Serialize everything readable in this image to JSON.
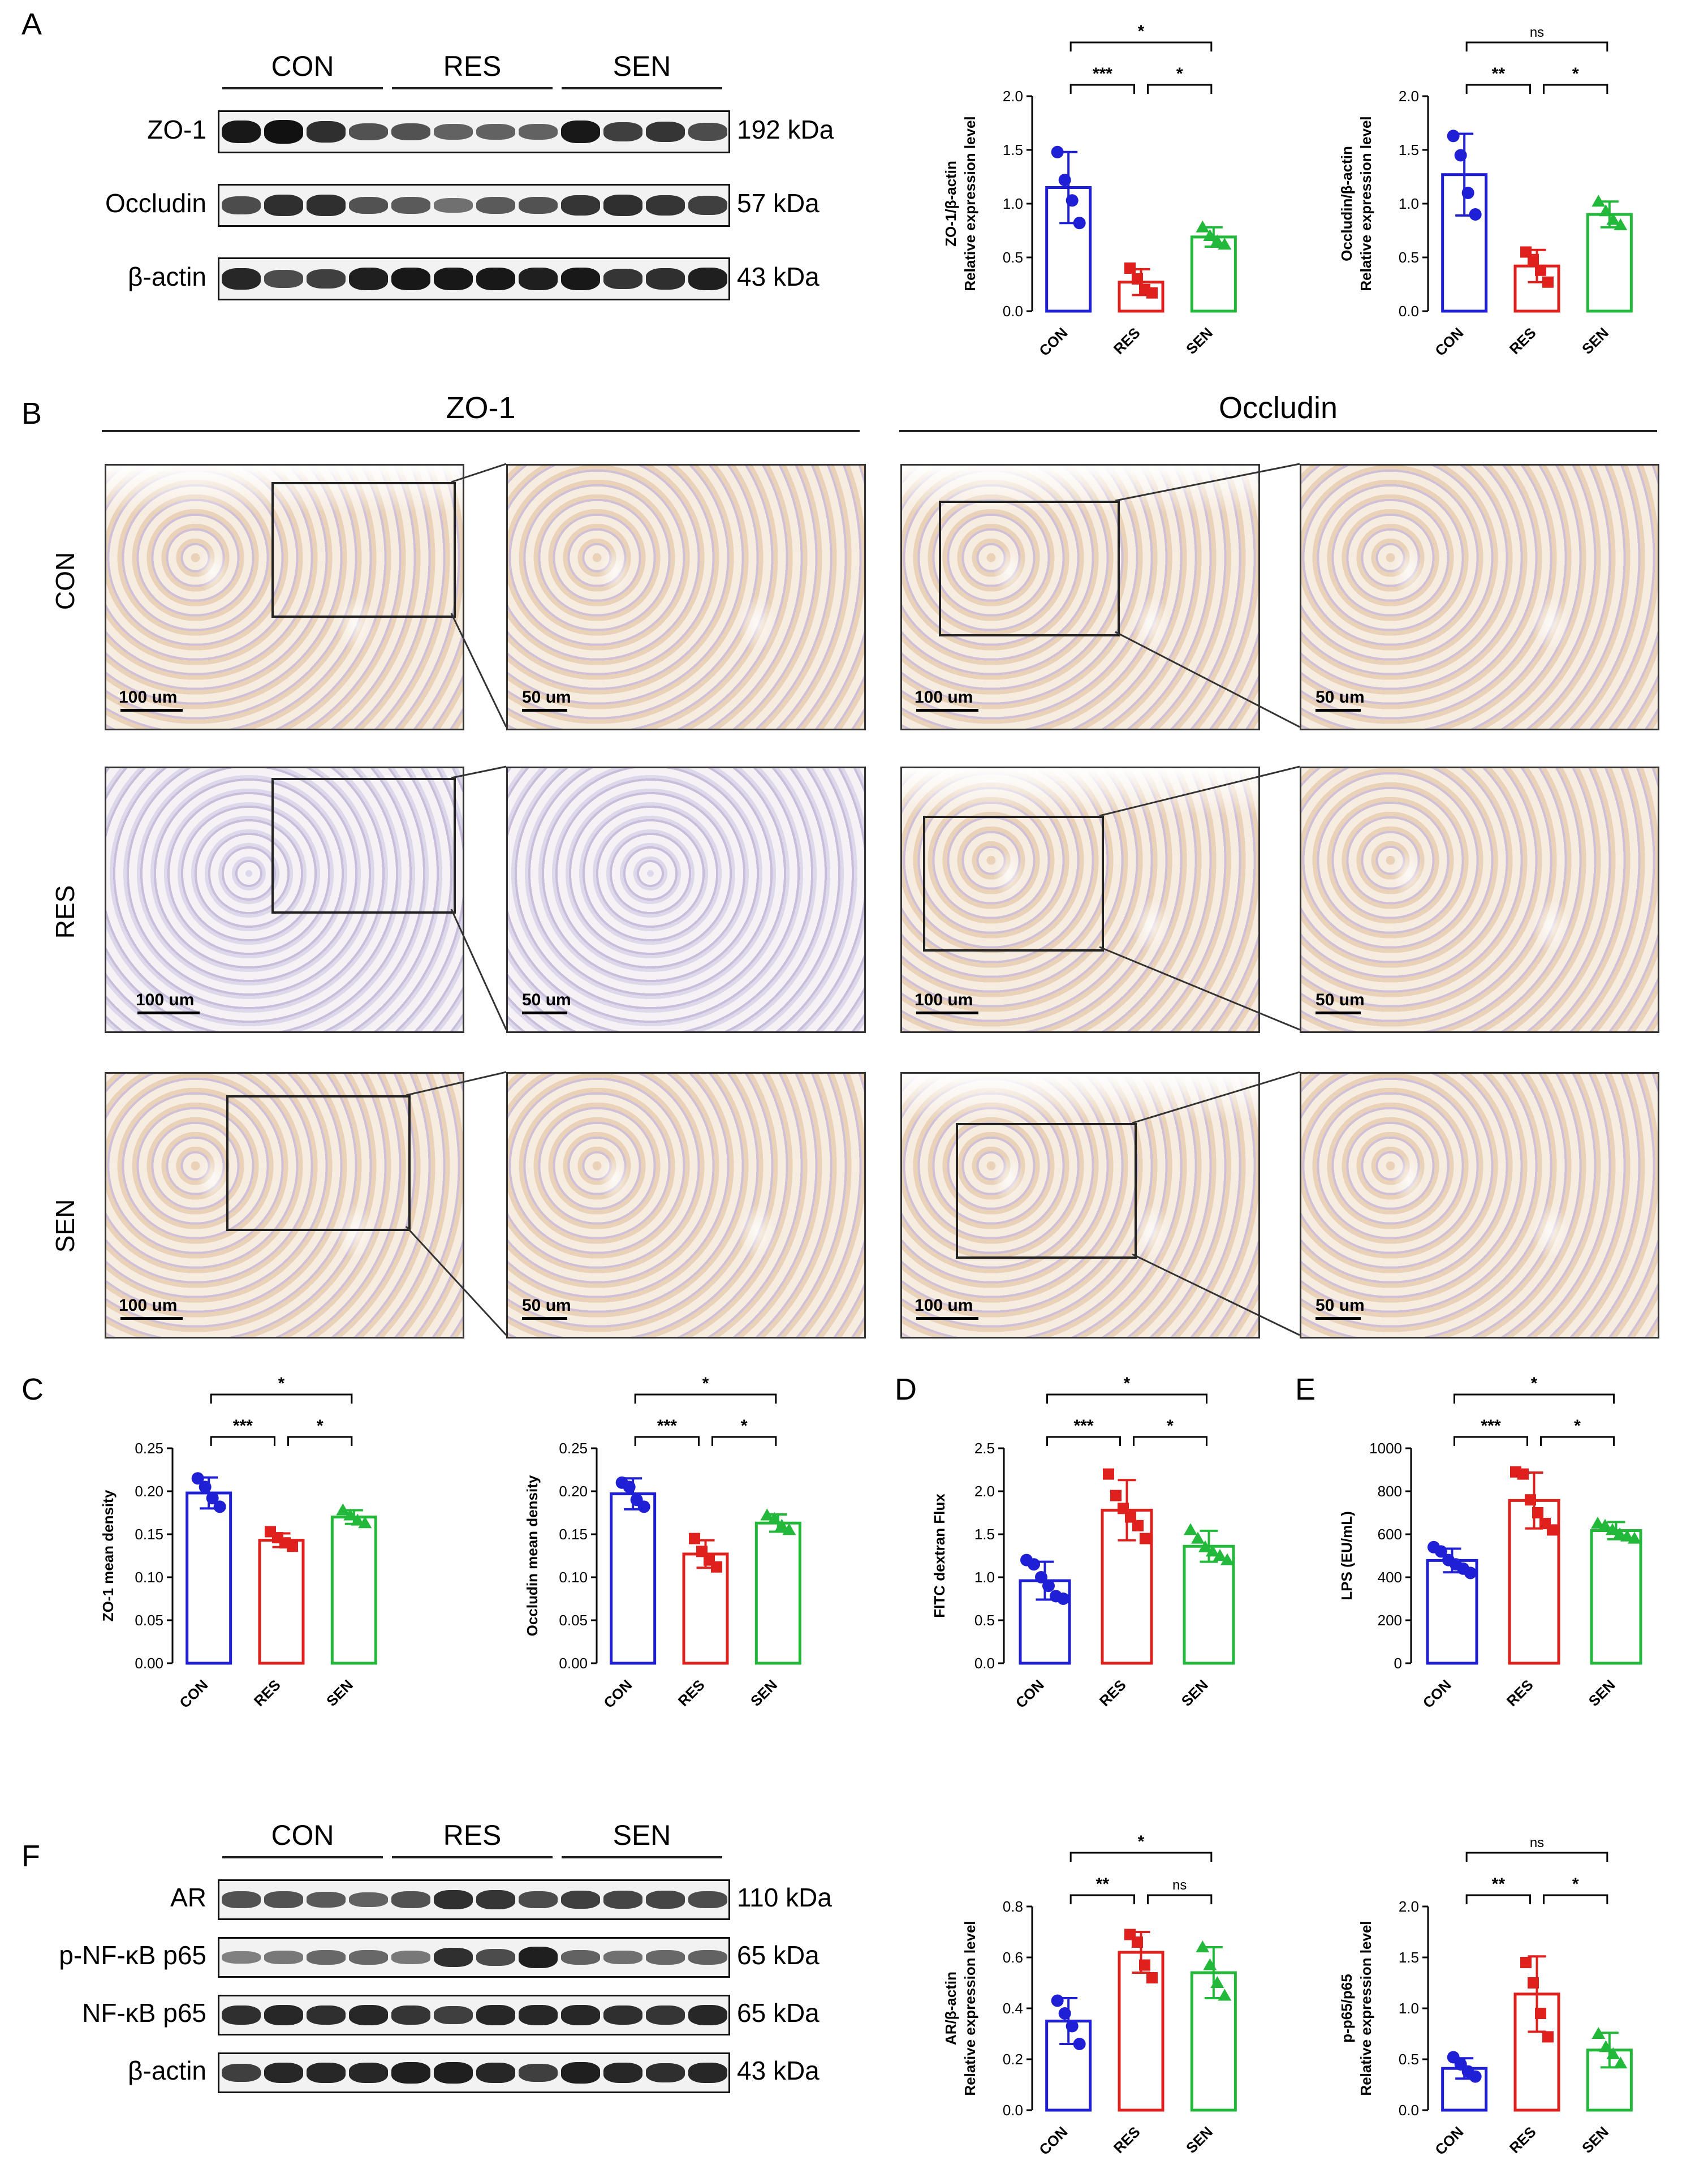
{
  "panels": {
    "A": "A",
    "B": "B",
    "C": "C",
    "D": "D",
    "E": "E",
    "F": "F"
  },
  "western_A": {
    "groups": [
      "CON",
      "RES",
      "SEN"
    ],
    "rows": [
      {
        "label": "ZO-1",
        "kda": "192 kDa",
        "intensity": [
          0.95,
          1.0,
          0.8,
          0.55,
          0.55,
          0.45,
          0.45,
          0.45,
          0.95,
          0.7,
          0.75,
          0.6
        ]
      },
      {
        "label": "Occludin",
        "kda": "57 kDa",
        "intensity": [
          0.6,
          0.8,
          0.8,
          0.55,
          0.5,
          0.35,
          0.5,
          0.55,
          0.75,
          0.8,
          0.75,
          0.7
        ]
      },
      {
        "label": "β-actin",
        "kda": "43 kDa",
        "intensity": [
          0.85,
          0.6,
          0.7,
          0.9,
          0.95,
          0.95,
          0.95,
          0.9,
          0.95,
          0.75,
          0.8,
          0.9
        ]
      }
    ]
  },
  "western_F": {
    "groups": [
      "CON",
      "RES",
      "SEN"
    ],
    "rows": [
      {
        "label": "AR",
        "kda": "110 kDa",
        "intensity": [
          0.55,
          0.55,
          0.5,
          0.45,
          0.55,
          0.8,
          0.75,
          0.6,
          0.7,
          0.65,
          0.65,
          0.6
        ]
      },
      {
        "label": "p-NF-κB p65",
        "kda": "65 kDa",
        "intensity": [
          0.25,
          0.3,
          0.4,
          0.4,
          0.3,
          0.8,
          0.6,
          0.9,
          0.45,
          0.35,
          0.4,
          0.45
        ]
      },
      {
        "label": "NF-κB p65",
        "kda": "65 kDa",
        "intensity": [
          0.8,
          0.85,
          0.8,
          0.85,
          0.75,
          0.7,
          0.85,
          0.85,
          0.85,
          0.8,
          0.75,
          0.85
        ]
      },
      {
        "label": "β-actin",
        "kda": "43 kDa",
        "intensity": [
          0.7,
          0.85,
          0.85,
          0.85,
          0.9,
          0.9,
          0.85,
          0.7,
          0.9,
          0.85,
          0.8,
          0.85
        ]
      }
    ]
  },
  "ihc": {
    "col_titles": [
      "ZO-1",
      "Occludin"
    ],
    "row_labels": [
      "CON",
      "RES",
      "SEN"
    ],
    "scale_low": "100 um",
    "scale_high": "50 um"
  },
  "colors": {
    "CON": "#1f1fd6",
    "RES": "#e0201c",
    "SEN": "#22b83a"
  },
  "chart_data": [
    {
      "id": "zo1_wb",
      "type": "bar",
      "categories": [
        "CON",
        "RES",
        "SEN"
      ],
      "ylabel": [
        "ZO-1/β-actin",
        "Relative expression level"
      ],
      "ylim": [
        0,
        2.0
      ],
      "yticks": [
        "0.0",
        "0.5",
        "1.0",
        "1.5",
        "2.0"
      ],
      "values": [
        1.15,
        0.27,
        0.69
      ],
      "err": [
        0.33,
        0.12,
        0.09
      ],
      "points": [
        [
          1.48,
          1.22,
          1.03,
          0.82
        ],
        [
          0.4,
          0.3,
          0.2,
          0.17
        ],
        [
          0.78,
          0.7,
          0.65,
          0.62
        ]
      ],
      "sig": [
        {
          "a": 0,
          "b": 1,
          "t": "***",
          "level": 1
        },
        {
          "a": 1,
          "b": 2,
          "t": "*",
          "level": 1
        },
        {
          "a": 0,
          "b": 2,
          "t": "*",
          "level": 2
        }
      ]
    },
    {
      "id": "occ_wb",
      "type": "bar",
      "categories": [
        "CON",
        "RES",
        "SEN"
      ],
      "ylabel": [
        "Occludin/β-actin",
        "Relative expression level"
      ],
      "ylim": [
        0,
        2.0
      ],
      "yticks": [
        "0.0",
        "0.5",
        "1.0",
        "1.5",
        "2.0"
      ],
      "values": [
        1.27,
        0.42,
        0.9
      ],
      "err": [
        0.38,
        0.15,
        0.12
      ],
      "points": [
        [
          1.63,
          1.45,
          1.1,
          0.9
        ],
        [
          0.55,
          0.48,
          0.38,
          0.27
        ],
        [
          1.02,
          0.93,
          0.85,
          0.8
        ]
      ],
      "sig": [
        {
          "a": 0,
          "b": 1,
          "t": "**",
          "level": 1
        },
        {
          "a": 1,
          "b": 2,
          "t": "*",
          "level": 1
        },
        {
          "a": 0,
          "b": 2,
          "t": "ns",
          "level": 2
        }
      ]
    },
    {
      "id": "zo1_ihc",
      "type": "bar",
      "categories": [
        "CON",
        "RES",
        "SEN"
      ],
      "ylabel": [
        "ZO-1 mean density"
      ],
      "ylim": [
        0,
        0.25
      ],
      "yticks": [
        "0.00",
        "0.05",
        "0.10",
        "0.15",
        "0.20",
        "0.25"
      ],
      "values": [
        0.198,
        0.143,
        0.17
      ],
      "err": [
        0.018,
        0.008,
        0.008
      ],
      "points": [
        [
          0.215,
          0.205,
          0.192,
          0.182
        ],
        [
          0.153,
          0.146,
          0.14,
          0.136
        ],
        [
          0.178,
          0.172,
          0.166,
          0.163
        ]
      ],
      "sig": [
        {
          "a": 0,
          "b": 1,
          "t": "***",
          "level": 1
        },
        {
          "a": 1,
          "b": 2,
          "t": "*",
          "level": 1
        },
        {
          "a": 0,
          "b": 2,
          "t": "*",
          "level": 2
        }
      ]
    },
    {
      "id": "occ_ihc",
      "type": "bar",
      "categories": [
        "CON",
        "RES",
        "SEN"
      ],
      "ylabel": [
        "Occludin  mean density"
      ],
      "ylim": [
        0,
        0.25
      ],
      "yticks": [
        "0.00",
        "0.05",
        "0.10",
        "0.15",
        "0.20",
        "0.25"
      ],
      "values": [
        0.197,
        0.127,
        0.163
      ],
      "err": [
        0.018,
        0.016,
        0.01
      ],
      "points": [
        [
          0.21,
          0.205,
          0.19,
          0.182
        ],
        [
          0.145,
          0.13,
          0.12,
          0.112
        ],
        [
          0.172,
          0.168,
          0.16,
          0.155
        ]
      ],
      "sig": [
        {
          "a": 0,
          "b": 1,
          "t": "***",
          "level": 1
        },
        {
          "a": 1,
          "b": 2,
          "t": "*",
          "level": 1
        },
        {
          "a": 0,
          "b": 2,
          "t": "*",
          "level": 2
        }
      ]
    },
    {
      "id": "fitc",
      "type": "bar",
      "categories": [
        "CON",
        "RES",
        "SEN"
      ],
      "ylabel": [
        "FITC dextran Flux"
      ],
      "ylim": [
        0,
        2.5
      ],
      "yticks": [
        "0.0",
        "0.5",
        "1.0",
        "1.5",
        "2.0",
        "2.5"
      ],
      "values": [
        0.96,
        1.78,
        1.36
      ],
      "err": [
        0.22,
        0.35,
        0.18
      ],
      "points": [
        [
          1.2,
          1.15,
          1.0,
          0.9,
          0.78,
          0.75
        ],
        [
          2.2,
          1.95,
          1.8,
          1.7,
          1.6,
          1.45
        ],
        [
          1.55,
          1.45,
          1.35,
          1.3,
          1.25,
          1.2
        ]
      ],
      "sig": [
        {
          "a": 0,
          "b": 1,
          "t": "***",
          "level": 1
        },
        {
          "a": 1,
          "b": 2,
          "t": "*",
          "level": 1
        },
        {
          "a": 0,
          "b": 2,
          "t": "*",
          "level": 2
        }
      ]
    },
    {
      "id": "lps",
      "type": "bar",
      "categories": [
        "CON",
        "RES",
        "SEN"
      ],
      "ylabel": [
        "LPS (EU/mL)"
      ],
      "ylim": [
        0,
        1000
      ],
      "yticks": [
        "0",
        "200",
        "400",
        "600",
        "800",
        "1000"
      ],
      "values": [
        478,
        757,
        617
      ],
      "err": [
        55,
        130,
        40
      ],
      "points": [
        [
          540,
          520,
          480,
          460,
          440,
          420
        ],
        [
          890,
          880,
          760,
          700,
          650,
          620
        ],
        [
          650,
          640,
          620,
          600,
          590,
          580
        ]
      ],
      "sig": [
        {
          "a": 0,
          "b": 1,
          "t": "***",
          "level": 1
        },
        {
          "a": 1,
          "b": 2,
          "t": "*",
          "level": 1
        },
        {
          "a": 0,
          "b": 2,
          "t": "*",
          "level": 2
        }
      ]
    },
    {
      "id": "ar",
      "type": "bar",
      "categories": [
        "CON",
        "RES",
        "SEN"
      ],
      "ylabel": [
        "AR/β-actin",
        "Relative expression level"
      ],
      "ylim": [
        0,
        0.8
      ],
      "yticks": [
        "0.0",
        "0.2",
        "0.4",
        "0.6",
        "0.8"
      ],
      "values": [
        0.35,
        0.62,
        0.54
      ],
      "err": [
        0.09,
        0.08,
        0.1
      ],
      "points": [
        [
          0.43,
          0.38,
          0.33,
          0.26
        ],
        [
          0.69,
          0.66,
          0.57,
          0.52
        ],
        [
          0.64,
          0.57,
          0.5,
          0.45
        ]
      ],
      "sig": [
        {
          "a": 0,
          "b": 1,
          "t": "**",
          "level": 1
        },
        {
          "a": 1,
          "b": 2,
          "t": "ns",
          "level": 1
        },
        {
          "a": 0,
          "b": 2,
          "t": "*",
          "level": 2
        }
      ]
    },
    {
      "id": "p65",
      "type": "bar",
      "categories": [
        "CON",
        "RES",
        "SEN"
      ],
      "ylabel": [
        "p-p65/p65",
        "Relative expression level"
      ],
      "ylim": [
        0,
        2.0
      ],
      "yticks": [
        "0.0",
        "0.5",
        "1.0",
        "1.5",
        "2.0"
      ],
      "values": [
        0.41,
        1.14,
        0.59
      ],
      "err": [
        0.1,
        0.37,
        0.17
      ],
      "points": [
        [
          0.52,
          0.45,
          0.38,
          0.33
        ],
        [
          1.45,
          1.25,
          0.95,
          0.72
        ],
        [
          0.75,
          0.62,
          0.55,
          0.46
        ]
      ],
      "sig": [
        {
          "a": 0,
          "b": 1,
          "t": "**",
          "level": 1
        },
        {
          "a": 1,
          "b": 2,
          "t": "*",
          "level": 1
        },
        {
          "a": 0,
          "b": 2,
          "t": "ns",
          "level": 2
        }
      ]
    }
  ]
}
